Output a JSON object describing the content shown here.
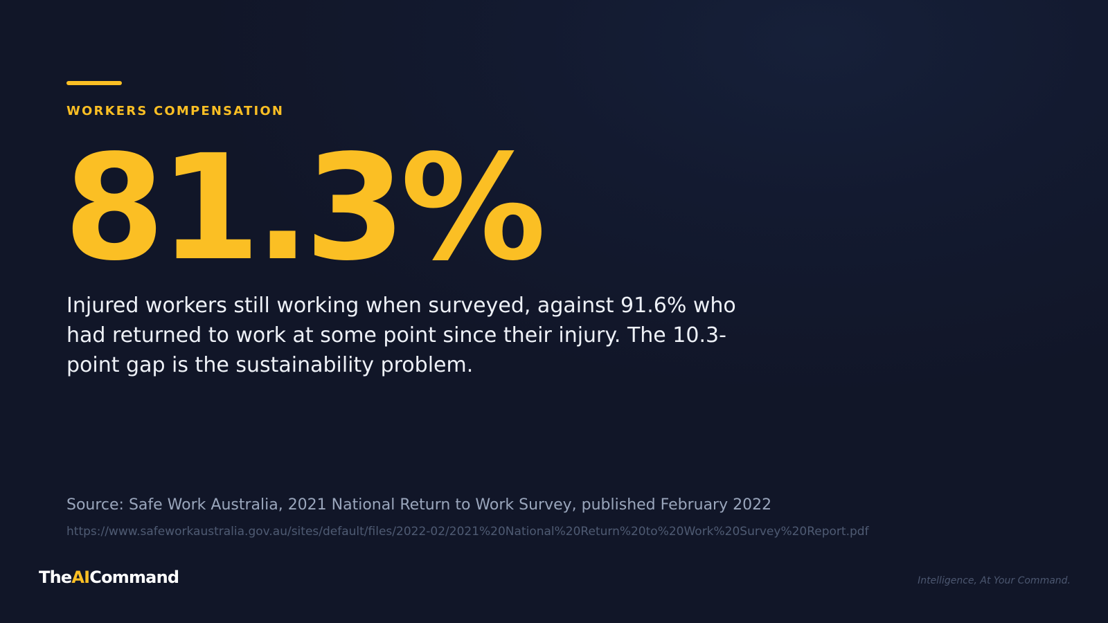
{
  "slide": {
    "eyebrow": "WORKERS COMPENSATION",
    "stat": "81.3%",
    "description": "Injured workers still working when surveyed, against 91.6% who had returned to work at some point since their injury. The 10.3-point gap is the sustainability problem.",
    "source": "Source: Safe Work Australia, 2021 National Return to Work Survey, published February 2022",
    "source_url": "https://www.safeworkaustralia.gov.au/sites/default/files/2022-02/2021%20National%20Return%20to%20Work%20Survey%20Report.pdf"
  },
  "footer": {
    "brand_prefix": "The",
    "brand_accent": "AI",
    "brand_suffix": "Command",
    "tagline": "Intelligence, At Your Command."
  },
  "colors": {
    "background": "#111628",
    "accent": "#fbbf24",
    "body_text": "#eef1f7",
    "muted_text": "#9aa6bc"
  }
}
